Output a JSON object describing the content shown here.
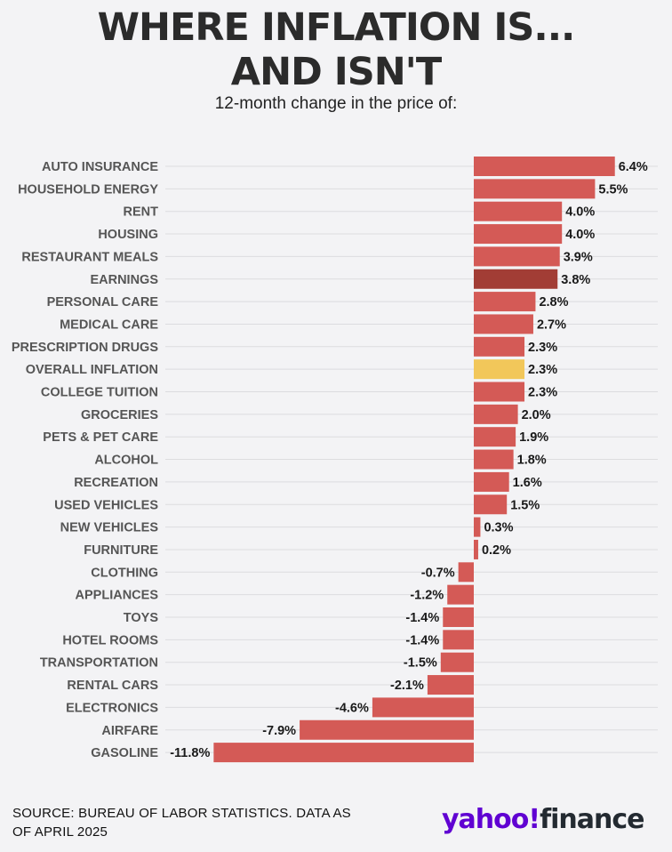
{
  "chart_data": {
    "type": "bar",
    "orientation": "horizontal",
    "title_lines": [
      "WHERE INFLATION IS...",
      "AND ISN'T"
    ],
    "subtitle": "12-month change in the price of:",
    "categories": [
      "AUTO INSURANCE",
      "HOUSEHOLD ENERGY",
      "RENT",
      "HOUSING",
      "RESTAURANT MEALS",
      "EARNINGS",
      "PERSONAL CARE",
      "MEDICAL CARE",
      "PRESCRIPTION DRUGS",
      "OVERALL INFLATION",
      "COLLEGE TUITION",
      "GROCERIES",
      "PETS & PET CARE",
      "ALCOHOL",
      "RECREATION",
      "USED VEHICLES",
      "NEW VEHICLES",
      "FURNITURE",
      "CLOTHING",
      "APPLIANCES",
      "TOYS",
      "HOTEL ROOMS",
      "TRANSPORTATION",
      "RENTAL CARS",
      "ELECTRONICS",
      "AIRFARE",
      "GASOLINE"
    ],
    "values": [
      6.4,
      5.5,
      4.0,
      4.0,
      3.9,
      3.8,
      2.8,
      2.7,
      2.3,
      2.3,
      2.3,
      2.0,
      1.9,
      1.8,
      1.6,
      1.5,
      0.3,
      0.2,
      -0.7,
      -1.2,
      -1.4,
      -1.4,
      -1.5,
      -2.1,
      -4.6,
      -7.9,
      -11.8
    ],
    "value_labels": [
      "6.4%",
      "5.5%",
      "4.0%",
      "4.0%",
      "3.9%",
      "3.8%",
      "2.8%",
      "2.7%",
      "2.3%",
      "2.3%",
      "2.3%",
      "2.0%",
      "1.9%",
      "1.8%",
      "1.6%",
      "1.5%",
      "0.3%",
      "0.2%",
      "-0.7%",
      "-1.2%",
      "-1.4%",
      "-1.4%",
      "-1.5%",
      "-2.1%",
      "-4.6%",
      "-7.9%",
      "-11.8%"
    ],
    "colors": {
      "default": "#d45a56",
      "earnings": "#a23d35",
      "overall_inflation": "#f2c75a"
    },
    "highlight": {
      "EARNINGS": "earnings",
      "OVERALL INFLATION": "overall_inflation"
    },
    "xlim": [
      -11.8,
      6.4
    ],
    "grid": true,
    "legend": "none"
  },
  "footer": {
    "source_line1": "SOURCE: BUREAU OF LABOR STATISTICS. DATA AS",
    "source_line2": "OF APRIL 2025",
    "logo_yahoo": "yahoo",
    "logo_bang": "!",
    "logo_finance": "finance"
  }
}
